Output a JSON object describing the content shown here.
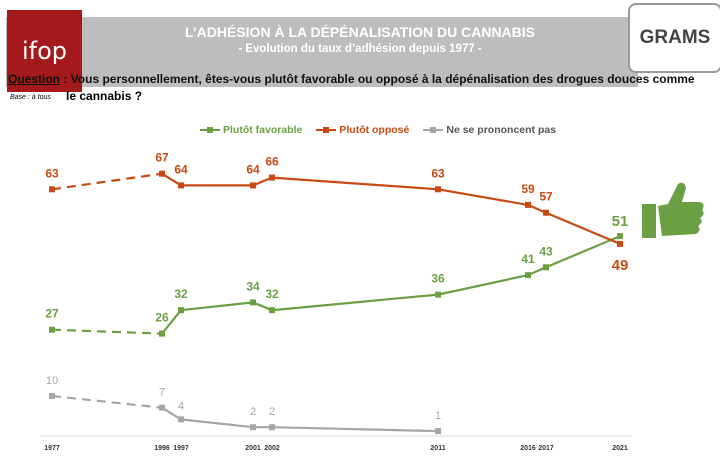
{
  "header": {
    "logo_left": "ifop",
    "title": "L’ADHÉSION À LA DÉPÉNALISATION DU CANNABIS",
    "subtitle": "- Evolution du taux d’adhésion depuis 1977 -",
    "logo_right": "GRAMS"
  },
  "question": {
    "label": "Question",
    "text": " : Vous personnellement, êtes-vous plutôt favorable ou opposé à la dépénalisation des drogues douces comme",
    "text2": "le cannabis ?",
    "base": "Base : à tous"
  },
  "chart_data": {
    "type": "line",
    "title": "L’ADHÉSION À LA DÉPÉNALISATION DU CANNABIS",
    "x": [
      "1977",
      "1996",
      "1997",
      "2001",
      "2002",
      "2011",
      "2016",
      "2017",
      "2021"
    ],
    "series": [
      {
        "name": "Plutôt favorable",
        "color": "#6aa043",
        "values": [
          27,
          26,
          32,
          34,
          32,
          36,
          41,
          43,
          51
        ]
      },
      {
        "name": "Plutôt opposé",
        "color": "#c84a12",
        "values": [
          63,
          67,
          64,
          64,
          66,
          63,
          59,
          57,
          49
        ]
      },
      {
        "name": "Ne se prononcent pas",
        "color": "#a6a6a6",
        "values": [
          10,
          7,
          4,
          2,
          2,
          1,
          null,
          null,
          null
        ]
      }
    ],
    "dashed_segment": [
      "1977",
      "1996"
    ],
    "legend": "top-center",
    "ylim": [
      0,
      70
    ]
  }
}
